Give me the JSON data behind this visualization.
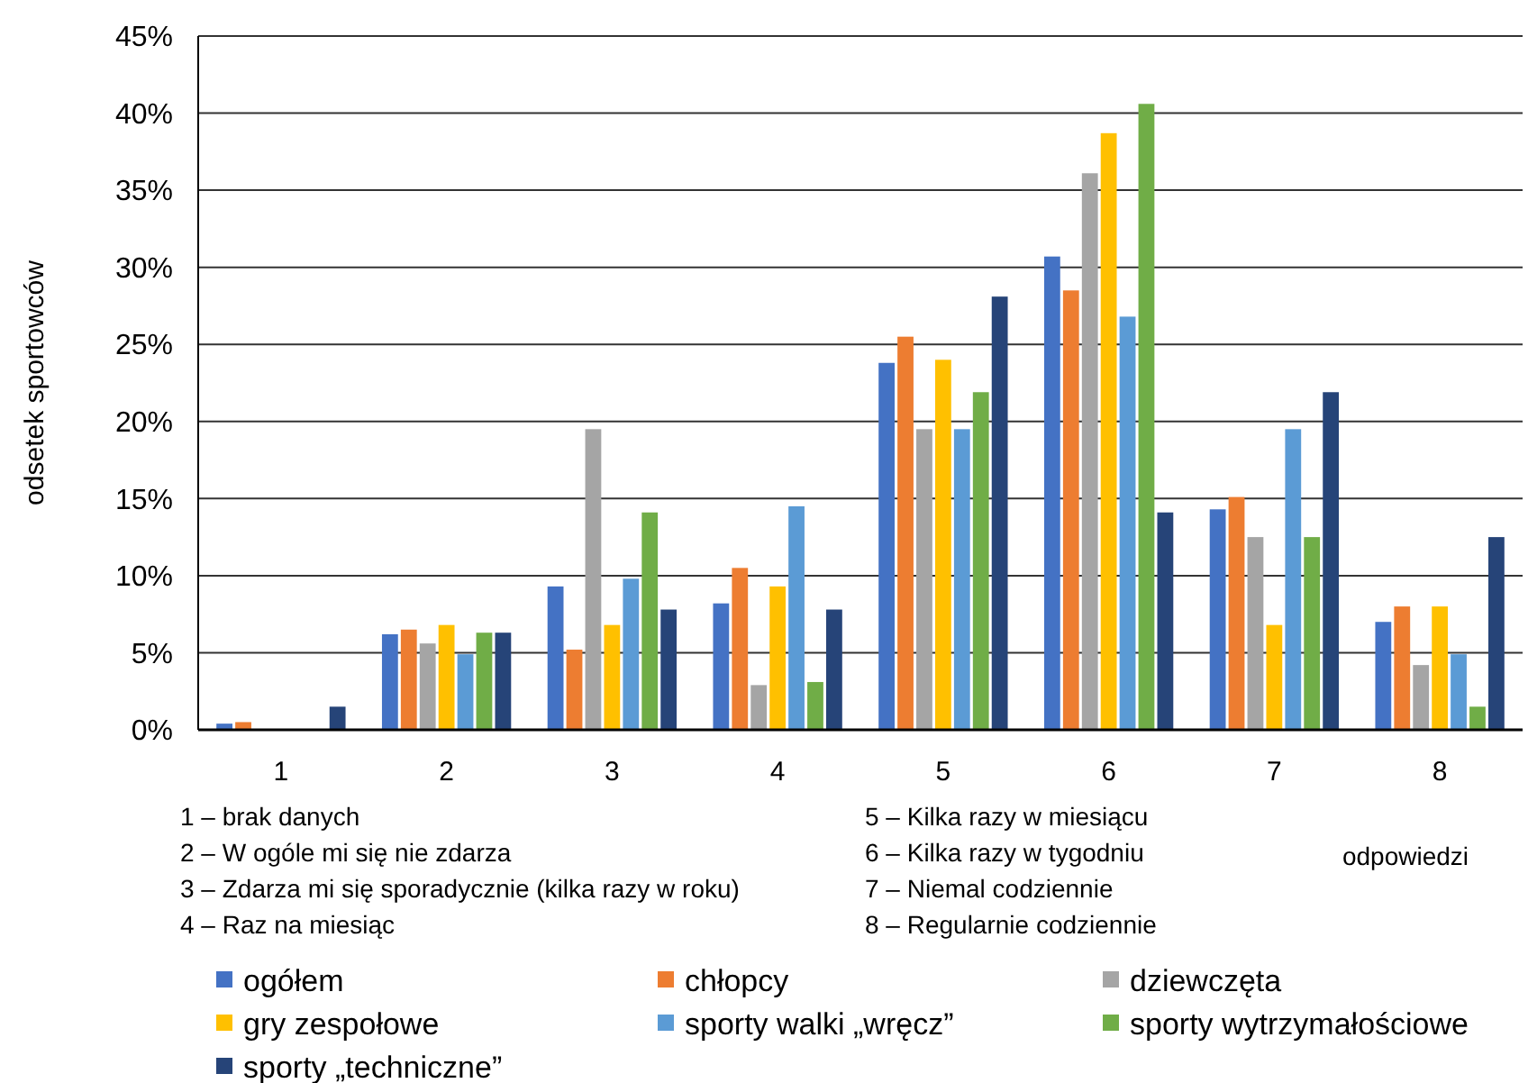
{
  "chart_data": {
    "type": "bar",
    "ylabel": "odsetek sportowców",
    "xlabel": "odpowiedzi",
    "categories": [
      "1",
      "2",
      "3",
      "4",
      "5",
      "6",
      "7",
      "8"
    ],
    "series": [
      {
        "name": "ogółem",
        "color": "#4472c4",
        "values": [
          0.4,
          6.2,
          9.3,
          8.2,
          23.8,
          30.7,
          14.3,
          7.0
        ]
      },
      {
        "name": "chłopcy",
        "color": "#ed7d31",
        "values": [
          0.5,
          6.5,
          5.2,
          10.5,
          25.5,
          28.5,
          15.1,
          8.0
        ]
      },
      {
        "name": "dziewczęta",
        "color": "#a5a5a5",
        "values": [
          0,
          5.6,
          19.5,
          2.9,
          19.5,
          36.1,
          12.5,
          4.2
        ]
      },
      {
        "name": "gry zespołowe",
        "color": "#ffc000",
        "values": [
          0,
          6.8,
          6.8,
          9.3,
          24.0,
          38.7,
          6.8,
          8.0
        ]
      },
      {
        "name": "sporty walki „wręcz”",
        "color": "#5b9bd5",
        "values": [
          0,
          4.9,
          9.8,
          14.5,
          19.5,
          26.8,
          19.5,
          4.9
        ]
      },
      {
        "name": "sporty wytrzymałościowe",
        "color": "#70ad47",
        "values": [
          0,
          6.3,
          14.1,
          3.1,
          21.9,
          40.6,
          12.5,
          1.5
        ]
      },
      {
        "name": "sporty „techniczne”",
        "color": "#264478",
        "values": [
          1.5,
          6.3,
          7.8,
          7.8,
          28.1,
          14.1,
          21.9,
          12.5
        ]
      }
    ],
    "ylim": [
      0,
      45
    ],
    "yticks": [
      {
        "value": 0,
        "label": "0%"
      },
      {
        "value": 5,
        "label": "5%"
      },
      {
        "value": 10,
        "label": "10%"
      },
      {
        "value": 15,
        "label": "15%"
      },
      {
        "value": 20,
        "label": "20%"
      },
      {
        "value": 25,
        "label": "25%"
      },
      {
        "value": 30,
        "label": "30%"
      },
      {
        "value": 35,
        "label": "35%"
      },
      {
        "value": 40,
        "label": "40%"
      },
      {
        "value": 45,
        "label": "45%"
      }
    ],
    "grid": "y",
    "legend": "bottom",
    "annotations": [
      "1 – brak danych",
      "2 – W ogóle mi się nie zdarza",
      "3 – Zdarza mi się sporadycznie (kilka razy w roku)",
      "4 – Raz na miesiąc",
      "5 – Kilka razy w miesiącu",
      "6 – Kilka razy w tygodniu",
      "7 – Niemal codziennie",
      "8 – Regularnie codziennie"
    ]
  }
}
